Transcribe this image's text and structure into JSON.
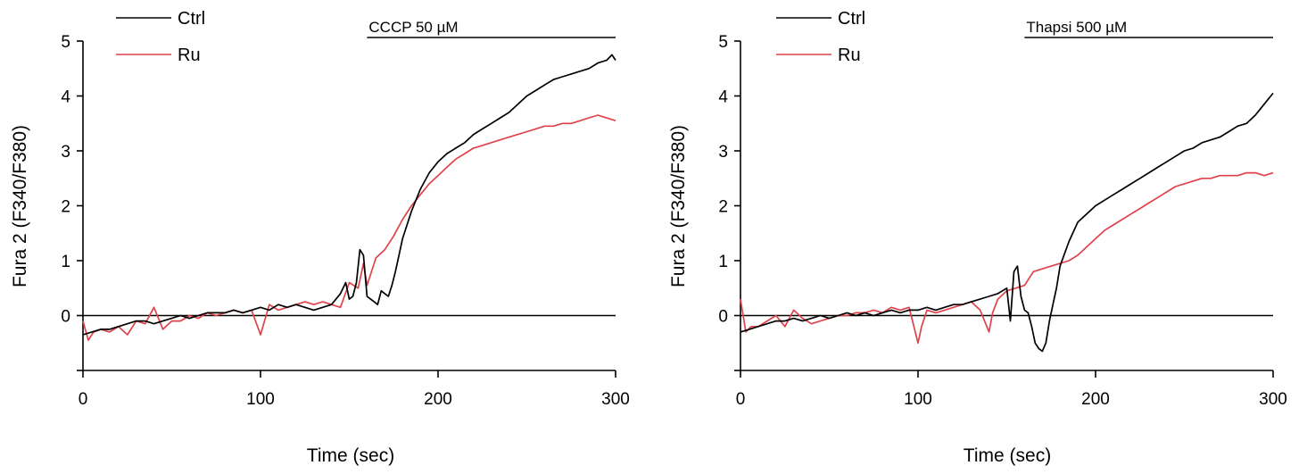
{
  "colors": {
    "Ctrl": "#000000",
    "Ru": "#e0424b"
  },
  "chart_data": [
    {
      "type": "line",
      "title": "",
      "xlabel": "Time (sec)",
      "ylabel": "Fura 2 (F340/F380)",
      "xlim": [
        0,
        300
      ],
      "ylim": [
        -1,
        5
      ],
      "xticks": [
        0,
        100,
        200,
        300
      ],
      "yticks": [
        -1,
        0,
        1,
        2,
        3,
        4,
        5
      ],
      "yticklabels": [
        "",
        "0",
        "1",
        "2",
        "3",
        "4",
        "5"
      ],
      "baseline": 0,
      "grid": false,
      "legend": "top-left",
      "annotation": {
        "label": "CCCP 50  µM",
        "x_start": 160,
        "x_end": 300
      },
      "series": [
        {
          "name": "Ctrl",
          "x": [
            0,
            5,
            10,
            15,
            20,
            25,
            30,
            35,
            40,
            45,
            50,
            55,
            60,
            65,
            70,
            75,
            80,
            85,
            90,
            95,
            100,
            105,
            110,
            115,
            120,
            125,
            130,
            135,
            140,
            145,
            148,
            150,
            152,
            154,
            156,
            158,
            160,
            162,
            164,
            166,
            168,
            170,
            172,
            174,
            176,
            178,
            180,
            185,
            190,
            195,
            200,
            205,
            210,
            215,
            220,
            225,
            230,
            235,
            240,
            245,
            250,
            255,
            260,
            265,
            270,
            275,
            280,
            285,
            290,
            295,
            298,
            300
          ],
          "y": [
            -0.35,
            -0.3,
            -0.25,
            -0.25,
            -0.2,
            -0.15,
            -0.1,
            -0.1,
            -0.15,
            -0.1,
            -0.05,
            0.0,
            -0.05,
            0.0,
            0.05,
            0.05,
            0.05,
            0.1,
            0.05,
            0.1,
            0.15,
            0.1,
            0.2,
            0.15,
            0.2,
            0.15,
            0.1,
            0.15,
            0.2,
            0.4,
            0.6,
            0.3,
            0.35,
            0.6,
            1.2,
            1.1,
            0.35,
            0.3,
            0.25,
            0.2,
            0.45,
            0.4,
            0.35,
            0.55,
            0.8,
            1.1,
            1.4,
            1.9,
            2.3,
            2.6,
            2.8,
            2.95,
            3.05,
            3.15,
            3.3,
            3.4,
            3.5,
            3.6,
            3.7,
            3.85,
            4.0,
            4.1,
            4.2,
            4.3,
            4.35,
            4.4,
            4.45,
            4.5,
            4.6,
            4.65,
            4.75,
            4.65
          ]
        },
        {
          "name": "Ru",
          "x": [
            0,
            3,
            6,
            10,
            15,
            20,
            25,
            30,
            35,
            40,
            45,
            50,
            55,
            60,
            65,
            70,
            75,
            80,
            85,
            90,
            95,
            100,
            105,
            110,
            115,
            120,
            125,
            130,
            135,
            140,
            145,
            150,
            155,
            158,
            160,
            165,
            170,
            175,
            180,
            185,
            190,
            195,
            200,
            205,
            210,
            215,
            220,
            225,
            230,
            235,
            240,
            245,
            250,
            255,
            260,
            265,
            270,
            275,
            280,
            285,
            290,
            295,
            300
          ],
          "y": [
            -0.1,
            -0.45,
            -0.3,
            -0.25,
            -0.3,
            -0.2,
            -0.35,
            -0.1,
            -0.15,
            0.15,
            -0.25,
            -0.1,
            -0.1,
            0.0,
            -0.05,
            0.05,
            0.0,
            0.05,
            0.1,
            0.05,
            0.1,
            -0.35,
            0.2,
            0.1,
            0.15,
            0.2,
            0.25,
            0.2,
            0.25,
            0.2,
            0.15,
            0.6,
            0.5,
            0.95,
            0.55,
            1.05,
            1.2,
            1.45,
            1.75,
            2.0,
            2.2,
            2.4,
            2.55,
            2.7,
            2.85,
            2.95,
            3.05,
            3.1,
            3.15,
            3.2,
            3.25,
            3.3,
            3.35,
            3.4,
            3.45,
            3.45,
            3.5,
            3.5,
            3.55,
            3.6,
            3.65,
            3.6,
            3.55
          ]
        }
      ]
    },
    {
      "type": "line",
      "title": "",
      "xlabel": "Time (sec)",
      "ylabel": "Fura 2 (F340/F380)",
      "xlim": [
        0,
        300
      ],
      "ylim": [
        -1,
        5
      ],
      "xticks": [
        0,
        100,
        200,
        300
      ],
      "yticks": [
        -1,
        0,
        1,
        2,
        3,
        4,
        5
      ],
      "yticklabels": [
        "",
        "0",
        "1",
        "2",
        "3",
        "4",
        "5"
      ],
      "baseline": 0,
      "grid": false,
      "legend": "top-left",
      "annotation": {
        "label": "Thapsi 500 µM",
        "x_start": 160,
        "x_end": 300
      },
      "series": [
        {
          "name": "Ctrl",
          "x": [
            0,
            5,
            10,
            15,
            20,
            25,
            30,
            35,
            40,
            45,
            50,
            55,
            60,
            65,
            70,
            75,
            80,
            85,
            90,
            95,
            100,
            105,
            110,
            115,
            120,
            125,
            130,
            135,
            140,
            145,
            150,
            152,
            154,
            156,
            158,
            160,
            162,
            164,
            166,
            168,
            170,
            172,
            174,
            176,
            178,
            180,
            185,
            190,
            195,
            200,
            205,
            210,
            215,
            220,
            225,
            230,
            235,
            240,
            245,
            250,
            255,
            260,
            265,
            270,
            275,
            280,
            285,
            290,
            295,
            300
          ],
          "y": [
            -0.3,
            -0.25,
            -0.2,
            -0.15,
            -0.1,
            -0.1,
            -0.05,
            -0.1,
            -0.05,
            0.0,
            -0.05,
            0.0,
            0.05,
            0.0,
            0.05,
            0.0,
            0.05,
            0.1,
            0.05,
            0.1,
            0.1,
            0.15,
            0.1,
            0.15,
            0.2,
            0.2,
            0.25,
            0.3,
            0.35,
            0.4,
            0.5,
            -0.1,
            0.8,
            0.9,
            0.35,
            0.1,
            0.05,
            -0.2,
            -0.5,
            -0.6,
            -0.65,
            -0.5,
            -0.1,
            0.2,
            0.5,
            0.9,
            1.35,
            1.7,
            1.85,
            2.0,
            2.1,
            2.2,
            2.3,
            2.4,
            2.5,
            2.6,
            2.7,
            2.8,
            2.9,
            3.0,
            3.05,
            3.15,
            3.2,
            3.25,
            3.35,
            3.45,
            3.5,
            3.65,
            3.85,
            4.05
          ]
        },
        {
          "name": "Ru",
          "x": [
            0,
            3,
            6,
            10,
            15,
            20,
            25,
            30,
            35,
            40,
            45,
            50,
            55,
            60,
            65,
            70,
            75,
            80,
            85,
            90,
            95,
            100,
            102,
            105,
            110,
            115,
            120,
            125,
            130,
            135,
            140,
            142,
            145,
            150,
            155,
            160,
            165,
            170,
            175,
            180,
            185,
            190,
            195,
            200,
            205,
            210,
            215,
            220,
            225,
            230,
            235,
            240,
            245,
            250,
            255,
            260,
            265,
            270,
            275,
            280,
            285,
            290,
            295,
            300
          ],
          "y": [
            0.3,
            -0.3,
            -0.2,
            -0.2,
            -0.1,
            0.0,
            -0.2,
            0.1,
            -0.05,
            -0.15,
            -0.1,
            -0.05,
            0.0,
            0.0,
            0.05,
            0.05,
            0.1,
            0.05,
            0.15,
            0.1,
            0.15,
            -0.5,
            -0.2,
            0.1,
            0.05,
            0.1,
            0.15,
            0.2,
            0.25,
            0.1,
            -0.3,
            0.05,
            0.3,
            0.45,
            0.5,
            0.55,
            0.8,
            0.85,
            0.9,
            0.95,
            1.0,
            1.1,
            1.25,
            1.4,
            1.55,
            1.65,
            1.75,
            1.85,
            1.95,
            2.05,
            2.15,
            2.25,
            2.35,
            2.4,
            2.45,
            2.5,
            2.5,
            2.55,
            2.55,
            2.55,
            2.6,
            2.6,
            2.55,
            2.6
          ]
        }
      ]
    }
  ]
}
